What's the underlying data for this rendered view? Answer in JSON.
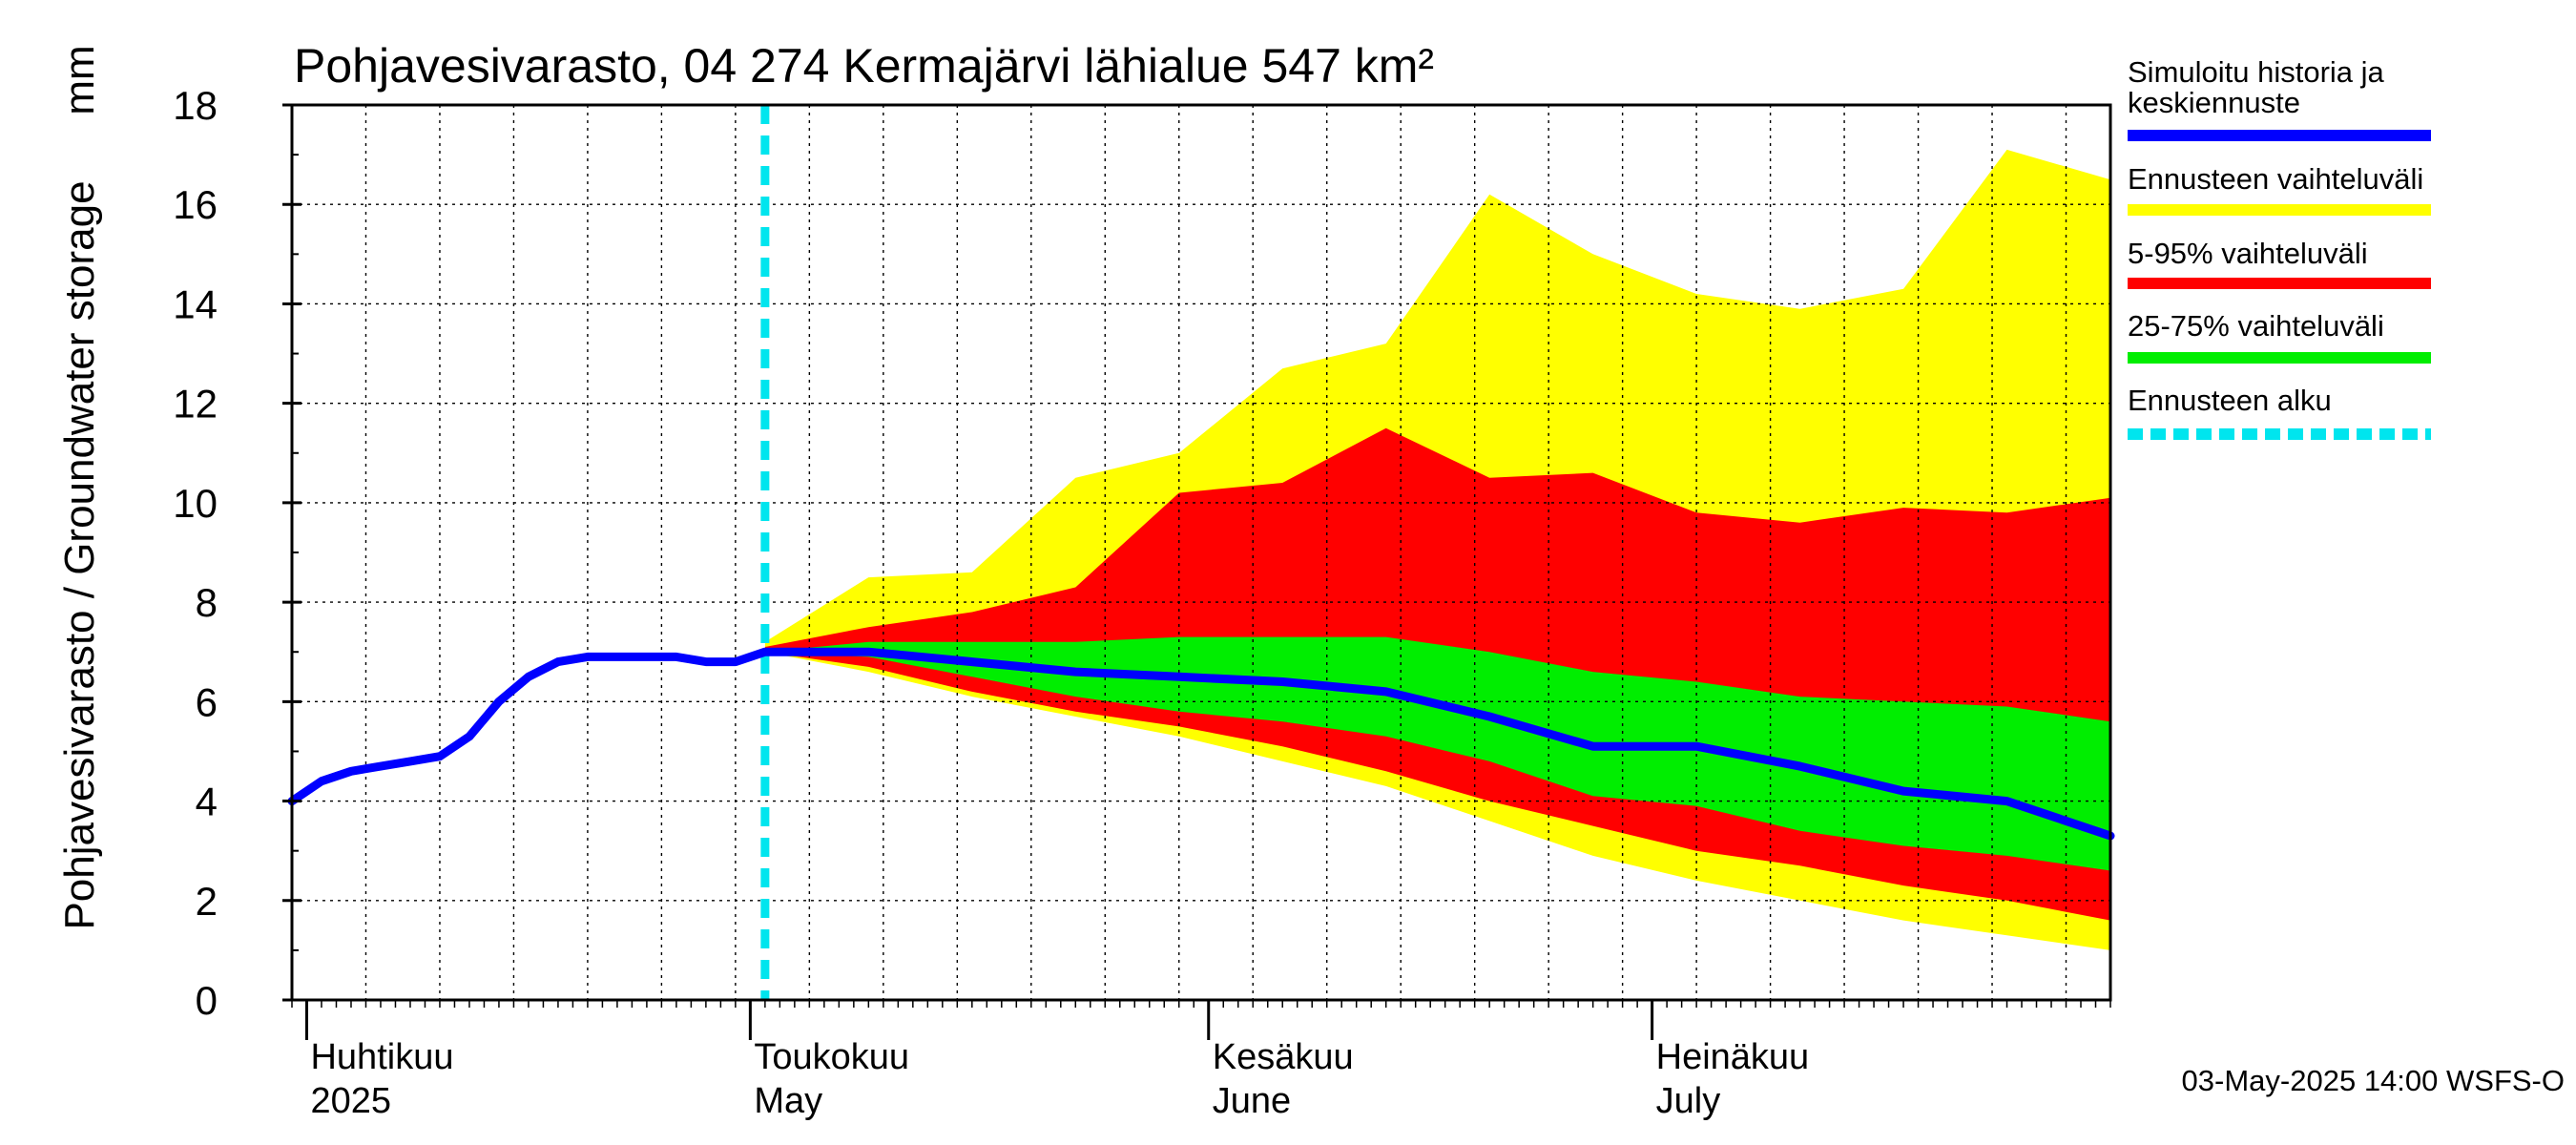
{
  "chart_data": {
    "type": "area",
    "title": "Pohjavesivarasto, 04 274 Kermajärvi lähialue 547 km²",
    "ylabel": "Pohjavesivarasto / Groundwater storage",
    "yunit": "mm",
    "ylim": [
      0,
      18
    ],
    "yticks": [
      "0",
      "2",
      "4",
      "6",
      "8",
      "10",
      "12",
      "14",
      "16",
      "18"
    ],
    "xlim": [
      "2025-03-31",
      "2025-08-01"
    ],
    "forecast_start": "2025-05-02",
    "grid": true,
    "legend_position": "right",
    "months": [
      {
        "fi": "Huhtikuu",
        "en": "2025",
        "date": "2025-04-01"
      },
      {
        "fi": "Toukokuu",
        "en": "May",
        "date": "2025-05-01"
      },
      {
        "fi": "Kesäkuu",
        "en": "June",
        "date": "2025-06-01"
      },
      {
        "fi": "Heinäkuu",
        "en": "July",
        "date": "2025-07-01"
      }
    ],
    "legend": [
      {
        "label": "Simuloitu historia ja",
        "label2": "keskiennuste",
        "color": "#0000ff",
        "style": "solid"
      },
      {
        "label": "Ennusteen vaihteluväli",
        "color": "#ffff00",
        "style": "solid"
      },
      {
        "label": "5-95% vaihteluväli",
        "color": "#ff0000",
        "style": "solid"
      },
      {
        "label": "25-75% vaihteluväli",
        "color": "#00ee00",
        "style": "solid"
      },
      {
        "label": "Ennusteen alku",
        "color": "#00e5ee",
        "style": "dashed"
      }
    ],
    "history": {
      "dates": [
        "2025-03-31",
        "2025-04-02",
        "2025-04-04",
        "2025-04-06",
        "2025-04-08",
        "2025-04-10",
        "2025-04-12",
        "2025-04-14",
        "2025-04-16",
        "2025-04-18",
        "2025-04-20",
        "2025-04-22",
        "2025-04-24",
        "2025-04-26",
        "2025-04-28",
        "2025-04-30",
        "2025-05-02"
      ],
      "values": [
        4.0,
        4.4,
        4.6,
        4.7,
        4.8,
        4.9,
        5.3,
        6.0,
        6.5,
        6.8,
        6.9,
        6.9,
        6.9,
        6.9,
        6.8,
        6.8,
        7.0
      ]
    },
    "forecast": {
      "dates": [
        "2025-05-02",
        "2025-05-09",
        "2025-05-16",
        "2025-05-23",
        "2025-05-30",
        "2025-06-06",
        "2025-06-13",
        "2025-06-20",
        "2025-06-27",
        "2025-07-04",
        "2025-07-11",
        "2025-07-18",
        "2025-07-25",
        "2025-08-01"
      ],
      "median": [
        7.0,
        7.0,
        6.8,
        6.6,
        6.5,
        6.4,
        6.2,
        5.7,
        5.1,
        5.1,
        4.7,
        4.2,
        4.0,
        3.3
      ],
      "min": [
        7.0,
        6.6,
        6.1,
        5.7,
        5.3,
        4.8,
        4.3,
        3.6,
        2.9,
        2.4,
        2.0,
        1.6,
        1.3,
        1.0
      ],
      "p5": [
        7.0,
        6.7,
        6.2,
        5.8,
        5.5,
        5.1,
        4.6,
        4.0,
        3.5,
        3.0,
        2.7,
        2.3,
        2.0,
        1.6
      ],
      "p25": [
        7.0,
        6.9,
        6.5,
        6.1,
        5.8,
        5.6,
        5.3,
        4.8,
        4.1,
        3.9,
        3.4,
        3.1,
        2.9,
        2.6
      ],
      "p75": [
        7.0,
        7.2,
        7.2,
        7.2,
        7.3,
        7.3,
        7.3,
        7.0,
        6.6,
        6.4,
        6.1,
        6.0,
        5.9,
        5.6
      ],
      "p95": [
        7.1,
        7.5,
        7.8,
        8.3,
        10.2,
        10.4,
        11.5,
        10.5,
        10.6,
        9.8,
        9.6,
        9.9,
        9.8,
        10.1
      ],
      "max": [
        7.2,
        8.5,
        8.6,
        10.5,
        11.0,
        12.7,
        13.2,
        16.2,
        15.0,
        14.2,
        13.9,
        14.3,
        17.1,
        16.5
      ]
    }
  },
  "footer": {
    "timestamp": "03-May-2025 14:00 WSFS-O"
  }
}
